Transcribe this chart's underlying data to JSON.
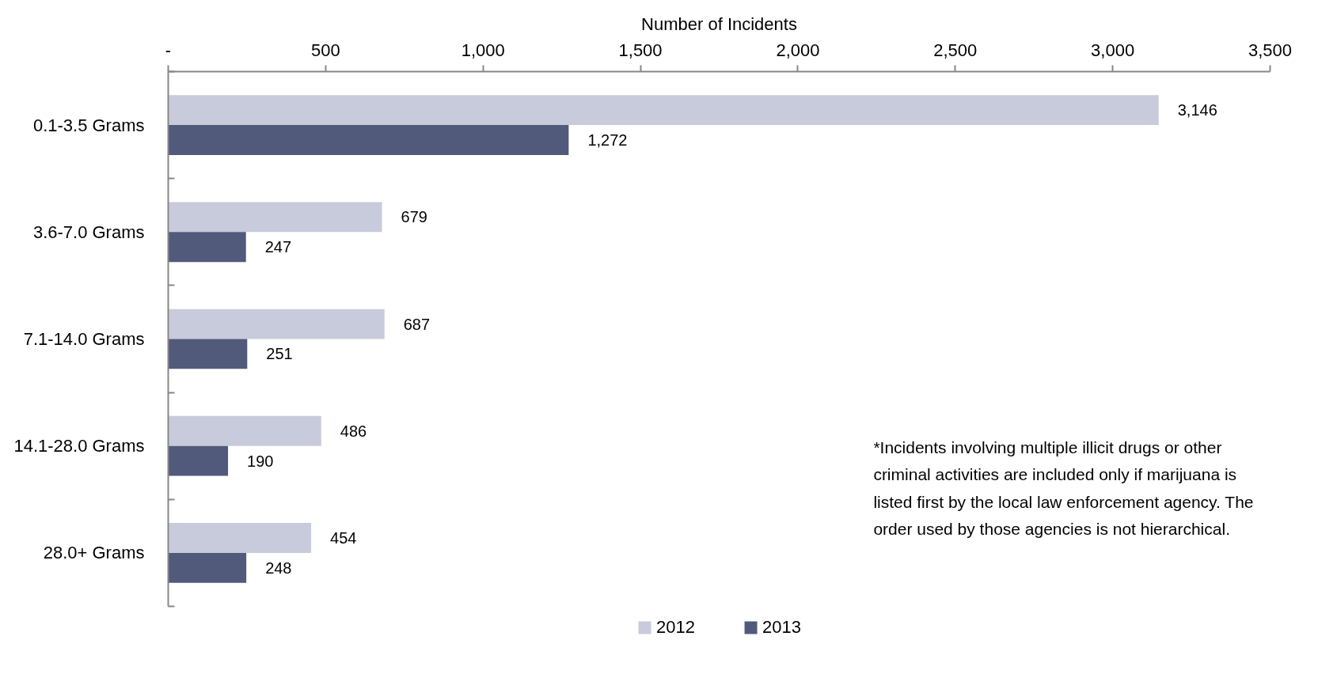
{
  "chart_data": {
    "type": "bar",
    "orientation": "horizontal",
    "xlabel": "Number of Incidents",
    "categories": [
      "0.1-3.5 Grams",
      "3.6-7.0 Grams",
      "7.1-14.0 Grams",
      "14.1-28.0 Grams",
      "28.0+ Grams"
    ],
    "series": [
      {
        "name": "2012",
        "color": "#c8cbdb",
        "values": [
          3146,
          679,
          687,
          486,
          454
        ],
        "value_labels": [
          "3,146",
          "679",
          "687",
          "486",
          "454"
        ]
      },
      {
        "name": "2013",
        "color": "#515a7b",
        "values": [
          1272,
          247,
          251,
          190,
          248
        ],
        "value_labels": [
          "1,272",
          "247",
          "251",
          "190",
          "248"
        ]
      }
    ],
    "xlim": [
      0,
      3500
    ],
    "xticks": [
      {
        "value": 0,
        "label": "-"
      },
      500,
      {
        "value": 1000,
        "label": "1,000"
      },
      {
        "value": 1500,
        "label": "1,500"
      },
      {
        "value": 2000,
        "label": "2,000"
      },
      {
        "value": 2500,
        "label": "2,500"
      },
      {
        "value": 3000,
        "label": "3,000"
      },
      {
        "value": 3500,
        "label": "3,500"
      }
    ],
    "grid": false,
    "legend": "bottom",
    "annotations": [
      "*Incidents involving multiple illicit drugs or other criminal activities are included only if marijuana is listed first by the local law enforcement agency. The order used by those agencies is not hierarchical."
    ]
  }
}
